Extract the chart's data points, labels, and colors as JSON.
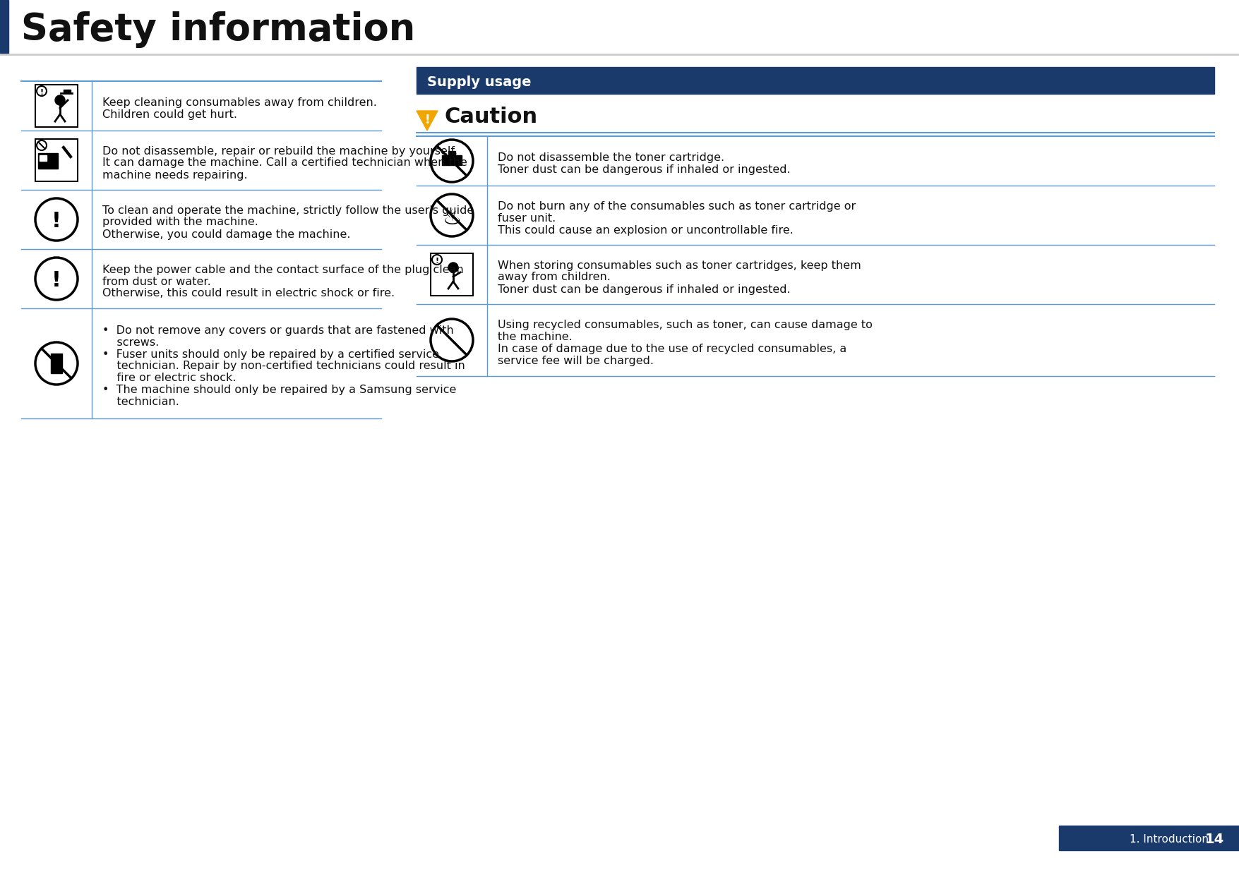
{
  "title": "Safety information",
  "title_bar_color": "#1a3a6b",
  "title_bg_color": "#ffffff",
  "title_fontsize": 38,
  "title_font_weight": "bold",
  "page_bg": "#ffffff",
  "header_line_color": "#cccccc",
  "section_line_color": "#5b9bd5",
  "table_line_color": "#5b9bd5",
  "supply_header_bg": "#1a3a6b",
  "supply_header_text": "Supply usage",
  "supply_header_color": "#ffffff",
  "caution_title": "Caution",
  "caution_color": "#f0a500",
  "left_table": {
    "rows": [
      {
        "icon_type": "img_child",
        "text_lines": [
          "Keep cleaning consumables away from children.",
          "Children could get hurt."
        ]
      },
      {
        "icon_type": "img_repair",
        "text_lines": [
          "Do not disassemble, repair or rebuild the machine by yourself.",
          "It can damage the machine. Call a certified technician when the",
          "machine needs repairing."
        ]
      },
      {
        "icon_type": "circle_exclaim",
        "text_lines": [
          "To clean and operate the machine, strictly follow the user's guide",
          "provided with the machine.",
          "Otherwise, you could damage the machine."
        ]
      },
      {
        "icon_type": "circle_exclaim",
        "text_lines": [
          "Keep the power cable and the contact surface of the plug clean",
          "from dust or water.",
          "Otherwise, this could result in electric shock or fire."
        ]
      },
      {
        "icon_type": "no_wrench",
        "text_lines": [
          "•  Do not remove any covers or guards that are fastened with",
          "    screws.",
          "•  Fuser units should only be repaired by a certified service",
          "    technician. Repair by non-certified technicians could result in",
          "    fire or electric shock.",
          "•  The machine should only be repaired by a Samsung service",
          "    technician."
        ]
      }
    ]
  },
  "right_table": {
    "rows": [
      {
        "icon_type": "no_cartridge",
        "text_lines": [
          "Do not disassemble the toner cartridge.",
          "Toner dust can be dangerous if inhaled or ingested."
        ]
      },
      {
        "icon_type": "no_burn",
        "text_lines": [
          "Do not burn any of the consumables such as toner cartridge or",
          "fuser unit.",
          "This could cause an explosion or uncontrollable fire."
        ]
      },
      {
        "icon_type": "img_child2",
        "text_lines": [
          "When storing consumables such as toner cartridges, keep them",
          "away from children.",
          "Toner dust can be dangerous if inhaled or ingested."
        ]
      },
      {
        "icon_type": "no_circle",
        "text_lines": [
          "Using recycled consumables, such as toner, can cause damage to",
          "the machine.",
          "In case of damage due to the use of recycled consumables, a",
          "service fee will be charged."
        ]
      }
    ]
  },
  "footer_text": "1. Introduction",
  "footer_page": "14",
  "footer_bg": "#1a3a6b",
  "footer_text_color": "#ffffff"
}
